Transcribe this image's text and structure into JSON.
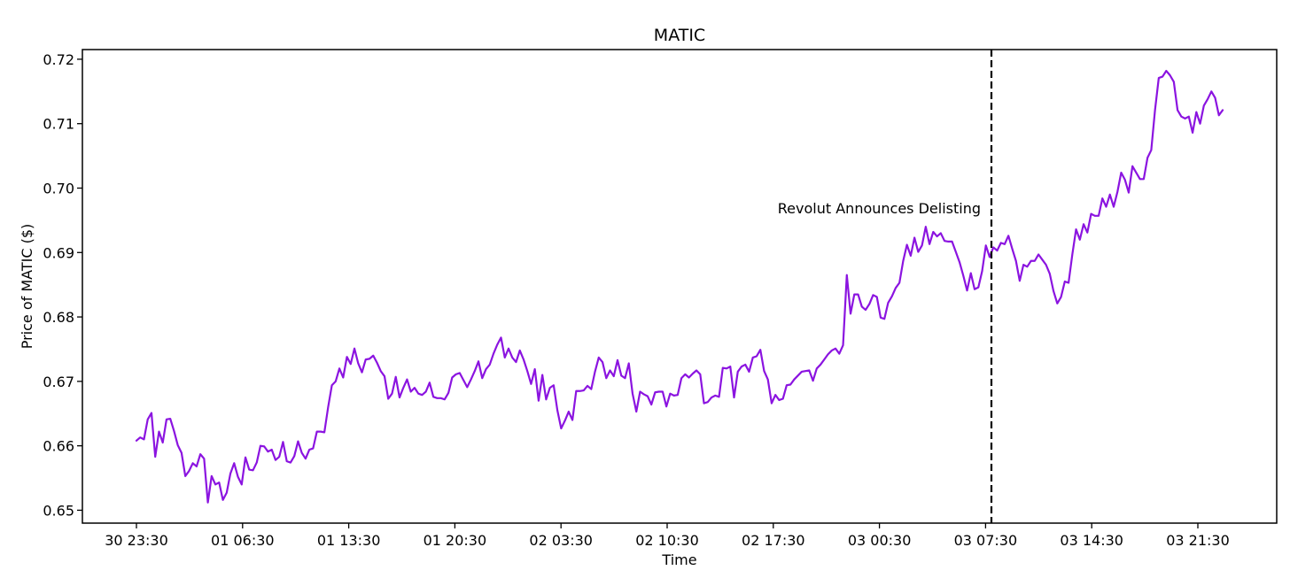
{
  "chart_data": {
    "type": "line",
    "title": "MATIC",
    "xlabel": "Time",
    "ylabel": "Price of MATIC ($)",
    "ylim": [
      0.648,
      0.7215
    ],
    "x_tick_labels": [
      "30 23:30",
      "01 06:30",
      "01 13:30",
      "01 20:30",
      "02 03:30",
      "02 10:30",
      "02 17:30",
      "03 00:30",
      "03 07:30",
      "03 14:30",
      "03 21:30"
    ],
    "y_tick_labels": [
      "0.65",
      "0.66",
      "0.67",
      "0.68",
      "0.69",
      "0.70",
      "0.71",
      "0.72"
    ],
    "y_ticks": [
      0.65,
      0.66,
      0.67,
      0.68,
      0.69,
      0.7,
      0.71,
      0.72
    ],
    "grid": false,
    "series": [
      {
        "color": "#8b14e0",
        "values": [
          0.6608,
          0.6613,
          0.661,
          0.6641,
          0.6651,
          0.6583,
          0.6622,
          0.6605,
          0.6641,
          0.6642,
          0.6623,
          0.6601,
          0.6589,
          0.6553,
          0.6561,
          0.6573,
          0.6568,
          0.6587,
          0.658,
          0.6512,
          0.6553,
          0.654,
          0.6543,
          0.6516,
          0.6527,
          0.6557,
          0.6573,
          0.6552,
          0.654,
          0.6582,
          0.6563,
          0.6562,
          0.6574,
          0.66,
          0.6599,
          0.6591,
          0.6594,
          0.6578,
          0.6583,
          0.6606,
          0.6576,
          0.6574,
          0.6584,
          0.6607,
          0.6589,
          0.658,
          0.6594,
          0.6596,
          0.6622,
          0.6622,
          0.6621,
          0.666,
          0.6694,
          0.67,
          0.672,
          0.6706,
          0.6738,
          0.6727,
          0.6751,
          0.6728,
          0.6714,
          0.6734,
          0.6735,
          0.674,
          0.6729,
          0.6716,
          0.6708,
          0.6673,
          0.6681,
          0.6707,
          0.6675,
          0.669,
          0.6703,
          0.6684,
          0.669,
          0.6681,
          0.6679,
          0.6684,
          0.6698,
          0.6676,
          0.6674,
          0.6674,
          0.6672,
          0.6682,
          0.6706,
          0.6711,
          0.6713,
          0.6702,
          0.6691,
          0.6703,
          0.6716,
          0.6731,
          0.6705,
          0.6719,
          0.6726,
          0.6743,
          0.6757,
          0.6768,
          0.6737,
          0.6751,
          0.6737,
          0.673,
          0.6748,
          0.6734,
          0.6716,
          0.6696,
          0.6719,
          0.667,
          0.671,
          0.6672,
          0.669,
          0.6694,
          0.6655,
          0.6627,
          0.6639,
          0.6653,
          0.664,
          0.6685,
          0.6685,
          0.6686,
          0.6693,
          0.6688,
          0.6715,
          0.6737,
          0.673,
          0.6705,
          0.6717,
          0.6708,
          0.6733,
          0.6709,
          0.6705,
          0.6728,
          0.6681,
          0.6653,
          0.6684,
          0.668,
          0.6677,
          0.6664,
          0.6683,
          0.6684,
          0.6684,
          0.6661,
          0.6681,
          0.6678,
          0.6679,
          0.6705,
          0.6711,
          0.6706,
          0.6712,
          0.6717,
          0.6711,
          0.6666,
          0.6668,
          0.6675,
          0.6678,
          0.6676,
          0.6721,
          0.672,
          0.6723,
          0.6675,
          0.6715,
          0.6723,
          0.6726,
          0.6715,
          0.6737,
          0.6739,
          0.6749,
          0.6716,
          0.6703,
          0.6666,
          0.6679,
          0.6671,
          0.6673,
          0.6694,
          0.6695,
          0.6703,
          0.6709,
          0.6715,
          0.6716,
          0.6717,
          0.6701,
          0.672,
          0.6726,
          0.6734,
          0.6742,
          0.6748,
          0.6751,
          0.6743,
          0.6756,
          0.6865,
          0.6805,
          0.6835,
          0.6835,
          0.6816,
          0.6811,
          0.682,
          0.6834,
          0.6831,
          0.6799,
          0.6797,
          0.6822,
          0.6832,
          0.6845,
          0.6853,
          0.6887,
          0.6912,
          0.6895,
          0.6923,
          0.6901,
          0.6911,
          0.694,
          0.6913,
          0.6932,
          0.6925,
          0.693,
          0.6918,
          0.6917,
          0.6917,
          0.6901,
          0.6885,
          0.6864,
          0.6841,
          0.6868,
          0.6843,
          0.6846,
          0.6871,
          0.6911,
          0.6893,
          0.6908,
          0.6903,
          0.6915,
          0.6913,
          0.6926,
          0.6906,
          0.6887,
          0.6856,
          0.6881,
          0.6878,
          0.6887,
          0.6887,
          0.6897,
          0.6889,
          0.6881,
          0.6867,
          0.684,
          0.6821,
          0.6831,
          0.6855,
          0.6853,
          0.6897,
          0.6936,
          0.692,
          0.6944,
          0.6931,
          0.696,
          0.6957,
          0.6957,
          0.6984,
          0.6971,
          0.699,
          0.6971,
          0.6994,
          0.7024,
          0.7013,
          0.6993,
          0.7034,
          0.7024,
          0.7014,
          0.7014,
          0.7047,
          0.7059,
          0.7121,
          0.7171,
          0.7173,
          0.7182,
          0.7175,
          0.7165,
          0.7121,
          0.7111,
          0.7108,
          0.7111,
          0.7086,
          0.7118,
          0.71,
          0.7128,
          0.7138,
          0.715,
          0.714,
          0.7113,
          0.7121
        ]
      }
    ],
    "annotation": {
      "text": "Revolut Announces Delisting",
      "line_style": "dashed",
      "line_color": "#000000"
    }
  }
}
